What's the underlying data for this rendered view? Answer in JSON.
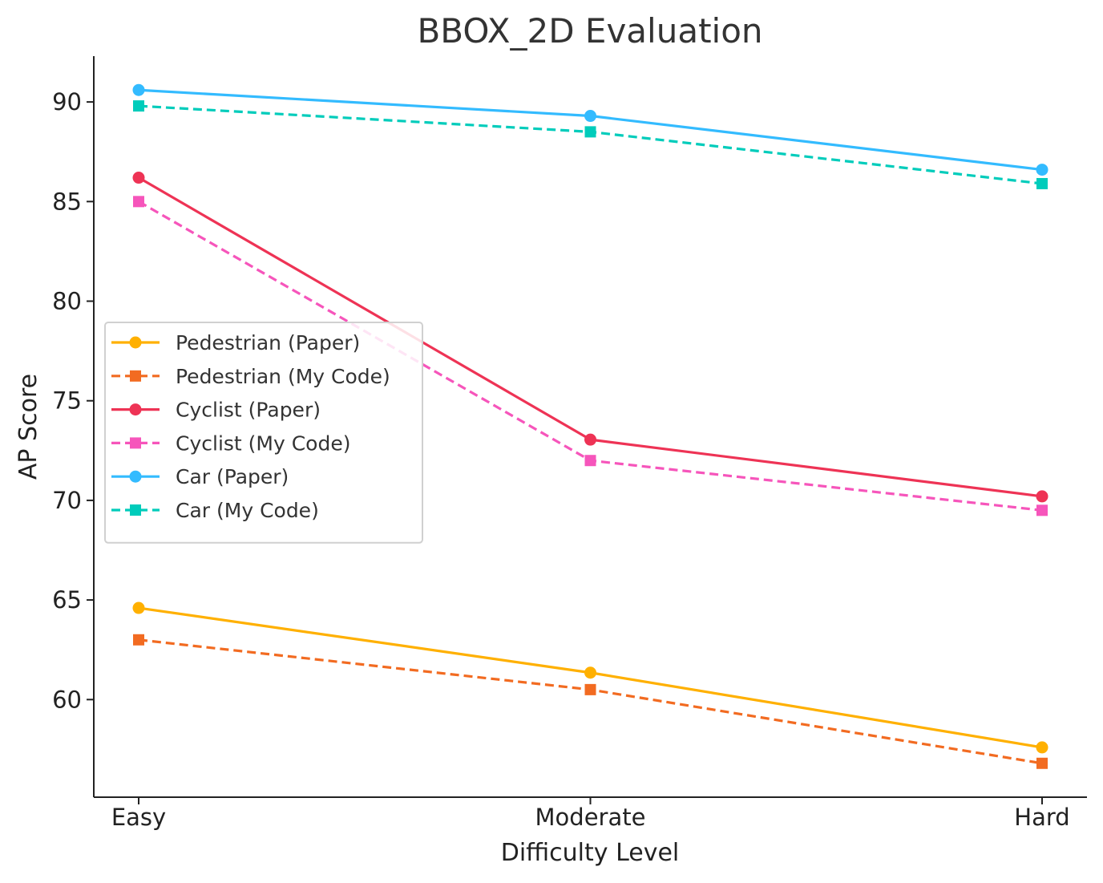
{
  "chart_data": {
    "type": "line",
    "title": "BBOX_2D Evaluation",
    "xlabel": "Difficulty Level",
    "ylabel": "AP Score",
    "categories": [
      "Easy",
      "Moderate",
      "Hard"
    ],
    "ylim": [
      55.1,
      92.3
    ],
    "yticks": [
      60,
      65,
      70,
      75,
      80,
      85,
      90
    ],
    "grid": false,
    "legend_position": "center-left",
    "series": [
      {
        "name": "Pedestrian (Paper)",
        "values": [
          64.6,
          61.35,
          57.6
        ],
        "color": "#FFB000",
        "dash": "solid",
        "marker": "circle"
      },
      {
        "name": "Pedestrian (My Code)",
        "values": [
          63.0,
          60.5,
          56.8
        ],
        "color": "#F26B21",
        "dash": "dashed",
        "marker": "square"
      },
      {
        "name": "Cyclist (Paper)",
        "values": [
          86.2,
          73.05,
          70.2
        ],
        "color": "#EE3355",
        "dash": "solid",
        "marker": "circle"
      },
      {
        "name": "Cyclist (My Code)",
        "values": [
          85.0,
          72.0,
          69.5
        ],
        "color": "#F655BB",
        "dash": "dashed",
        "marker": "square"
      },
      {
        "name": "Car (Paper)",
        "values": [
          90.6,
          89.3,
          86.6
        ],
        "color": "#33BBFF",
        "dash": "solid",
        "marker": "circle"
      },
      {
        "name": "Car (My Code)",
        "values": [
          89.8,
          88.5,
          85.9
        ],
        "color": "#00CCBB",
        "dash": "dashed",
        "marker": "square"
      }
    ]
  }
}
